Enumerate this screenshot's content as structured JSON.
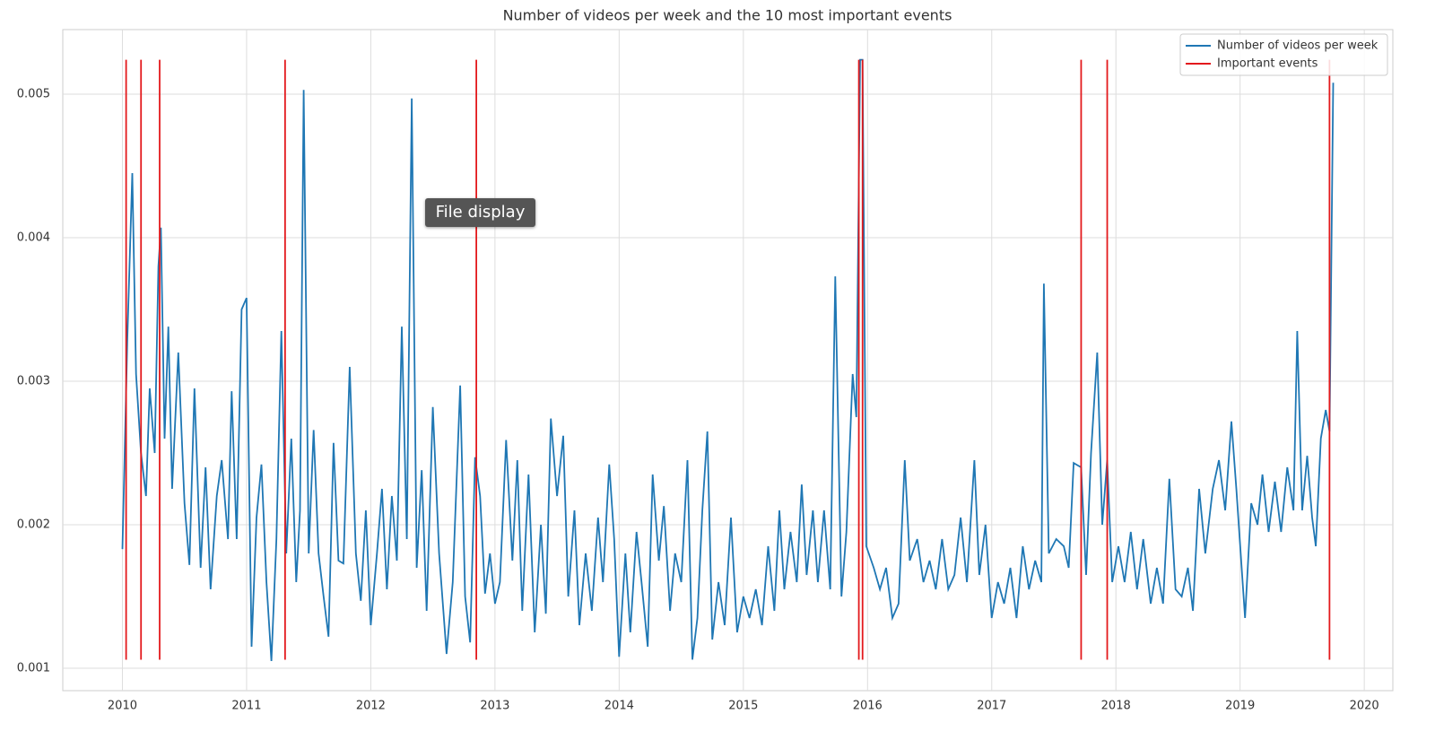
{
  "chart_data": {
    "type": "line",
    "title": "Number of videos per week and the 10 most important events",
    "xlim": [
      2009.52,
      2020.23
    ],
    "xticks": [
      2010,
      2011,
      2012,
      2013,
      2014,
      2015,
      2016,
      2017,
      2018,
      2019,
      2020
    ],
    "ylim": [
      0.000844,
      0.00545
    ],
    "yticks": [
      0.001,
      0.002,
      0.003,
      0.004,
      0.005
    ],
    "grid": true,
    "legend": "upper right",
    "series": [
      {
        "name": "Number of videos per week",
        "color": "#1f77b4",
        "x": [
          2010.0,
          2010.04,
          2010.08,
          2010.11,
          2010.15,
          2010.19,
          2010.22,
          2010.26,
          2010.29,
          2010.31,
          2010.34,
          2010.37,
          2010.4,
          2010.45,
          2010.5,
          2010.54,
          2010.58,
          2010.63,
          2010.67,
          2010.71,
          2010.76,
          2010.8,
          2010.85,
          2010.88,
          2010.92,
          2010.96,
          2011.0,
          2011.04,
          2011.08,
          2011.12,
          2011.16,
          2011.2,
          2011.24,
          2011.28,
          2011.32,
          2011.36,
          2011.4,
          2011.43,
          2011.46,
          2011.5,
          2011.54,
          2011.58,
          2011.62,
          2011.66,
          2011.7,
          2011.74,
          2011.78,
          2011.83,
          2011.88,
          2011.92,
          2011.96,
          2012.0,
          2012.05,
          2012.09,
          2012.13,
          2012.17,
          2012.21,
          2012.25,
          2012.29,
          2012.33,
          2012.37,
          2012.41,
          2012.45,
          2012.5,
          2012.55,
          2012.61,
          2012.66,
          2012.72,
          2012.76,
          2012.8,
          2012.84,
          2012.88,
          2012.92,
          2012.96,
          2013.0,
          2013.04,
          2013.09,
          2013.14,
          2013.18,
          2013.22,
          2013.27,
          2013.32,
          2013.37,
          2013.41,
          2013.45,
          2013.5,
          2013.55,
          2013.59,
          2013.64,
          2013.68,
          2013.73,
          2013.78,
          2013.83,
          2013.87,
          2013.92,
          2013.96,
          2014.0,
          2014.05,
          2014.09,
          2014.14,
          2014.18,
          2014.23,
          2014.27,
          2014.32,
          2014.36,
          2014.41,
          2014.45,
          2014.5,
          2014.55,
          2014.59,
          2014.63,
          2014.67,
          2014.71,
          2014.75,
          2014.8,
          2014.85,
          2014.9,
          2014.95,
          2015.0,
          2015.05,
          2015.1,
          2015.15,
          2015.2,
          2015.25,
          2015.29,
          2015.33,
          2015.38,
          2015.43,
          2015.47,
          2015.51,
          2015.56,
          2015.6,
          2015.65,
          2015.7,
          2015.74,
          2015.79,
          2015.83,
          2015.88,
          2015.91,
          2015.94,
          2015.96,
          2015.99,
          2016.05,
          2016.1,
          2016.15,
          2016.2,
          2016.25,
          2016.3,
          2016.34,
          2016.4,
          2016.45,
          2016.5,
          2016.55,
          2016.6,
          2016.65,
          2016.7,
          2016.75,
          2016.8,
          2016.86,
          2016.9,
          2016.95,
          2017.0,
          2017.05,
          2017.1,
          2017.15,
          2017.2,
          2017.25,
          2017.3,
          2017.35,
          2017.4,
          2017.42,
          2017.46,
          2017.52,
          2017.58,
          2017.62,
          2017.66,
          2017.72,
          2017.76,
          2017.8,
          2017.85,
          2017.89,
          2017.93,
          2017.97,
          2018.02,
          2018.07,
          2018.12,
          2018.17,
          2018.22,
          2018.28,
          2018.33,
          2018.38,
          2018.43,
          2018.48,
          2018.53,
          2018.58,
          2018.62,
          2018.67,
          2018.72,
          2018.78,
          2018.83,
          2018.88,
          2018.93,
          2018.97,
          2019.04,
          2019.09,
          2019.14,
          2019.18,
          2019.23,
          2019.28,
          2019.33,
          2019.38,
          2019.43,
          2019.46,
          2019.5,
          2019.54,
          2019.58,
          2019.61,
          2019.65,
          2019.69,
          2019.72,
          2019.75
        ],
        "values": [
          0.00183,
          0.0033,
          0.00445,
          0.00305,
          0.0025,
          0.0022,
          0.00295,
          0.0025,
          0.0038,
          0.00407,
          0.0026,
          0.00338,
          0.00225,
          0.0032,
          0.00215,
          0.00172,
          0.00295,
          0.0017,
          0.0024,
          0.00155,
          0.0022,
          0.00245,
          0.0019,
          0.00293,
          0.0019,
          0.0035,
          0.00358,
          0.00115,
          0.00205,
          0.00242,
          0.0016,
          0.00105,
          0.0019,
          0.00335,
          0.0018,
          0.0026,
          0.0016,
          0.0021,
          0.00503,
          0.0018,
          0.00266,
          0.0018,
          0.0015,
          0.00122,
          0.00257,
          0.00175,
          0.00173,
          0.0031,
          0.0018,
          0.00147,
          0.0021,
          0.0013,
          0.0018,
          0.00225,
          0.00155,
          0.0022,
          0.00175,
          0.00338,
          0.0019,
          0.00497,
          0.0017,
          0.00238,
          0.0014,
          0.00282,
          0.0018,
          0.0011,
          0.0016,
          0.00297,
          0.0015,
          0.00118,
          0.00247,
          0.0022,
          0.00152,
          0.0018,
          0.00145,
          0.0016,
          0.00259,
          0.00175,
          0.00245,
          0.0014,
          0.00235,
          0.00125,
          0.002,
          0.00138,
          0.00274,
          0.0022,
          0.00262,
          0.0015,
          0.0021,
          0.0013,
          0.0018,
          0.0014,
          0.00205,
          0.0016,
          0.00242,
          0.0019,
          0.00108,
          0.0018,
          0.00125,
          0.00195,
          0.0016,
          0.00115,
          0.00235,
          0.00175,
          0.00213,
          0.0014,
          0.0018,
          0.0016,
          0.00245,
          0.00106,
          0.00135,
          0.0021,
          0.00265,
          0.0012,
          0.0016,
          0.0013,
          0.00205,
          0.00125,
          0.0015,
          0.00135,
          0.00155,
          0.0013,
          0.00185,
          0.0014,
          0.0021,
          0.00155,
          0.00195,
          0.0016,
          0.00228,
          0.00165,
          0.0021,
          0.0016,
          0.0021,
          0.00155,
          0.00373,
          0.0015,
          0.00195,
          0.00305,
          0.00275,
          0.00524,
          0.00524,
          0.00185,
          0.0017,
          0.00155,
          0.0017,
          0.00135,
          0.00145,
          0.00245,
          0.00175,
          0.0019,
          0.0016,
          0.00175,
          0.00155,
          0.0019,
          0.00155,
          0.00165,
          0.00205,
          0.0016,
          0.00245,
          0.00165,
          0.002,
          0.00135,
          0.0016,
          0.00145,
          0.0017,
          0.00135,
          0.00185,
          0.00155,
          0.00175,
          0.0016,
          0.00368,
          0.0018,
          0.0019,
          0.00185,
          0.0017,
          0.00243,
          0.0024,
          0.00165,
          0.0025,
          0.0032,
          0.002,
          0.00245,
          0.0016,
          0.00185,
          0.0016,
          0.00195,
          0.00155,
          0.0019,
          0.00145,
          0.0017,
          0.00145,
          0.00232,
          0.00155,
          0.0015,
          0.0017,
          0.0014,
          0.00225,
          0.0018,
          0.00225,
          0.00245,
          0.0021,
          0.00272,
          0.00225,
          0.00135,
          0.00215,
          0.002,
          0.00235,
          0.00195,
          0.0023,
          0.00195,
          0.0024,
          0.0021,
          0.00335,
          0.0021,
          0.00248,
          0.00205,
          0.00185,
          0.0026,
          0.0028,
          0.00265,
          0.00508
        ]
      },
      {
        "name": "Important events",
        "color": "#e3191c",
        "type": "vlines",
        "x": [
          2010.03,
          2010.15,
          2010.3,
          2011.31,
          2012.85,
          2015.93,
          2015.96,
          2017.72,
          2017.93,
          2019.72
        ],
        "ymin": 0.00106,
        "ymax": 0.00524
      }
    ]
  },
  "tooltip": "File display"
}
